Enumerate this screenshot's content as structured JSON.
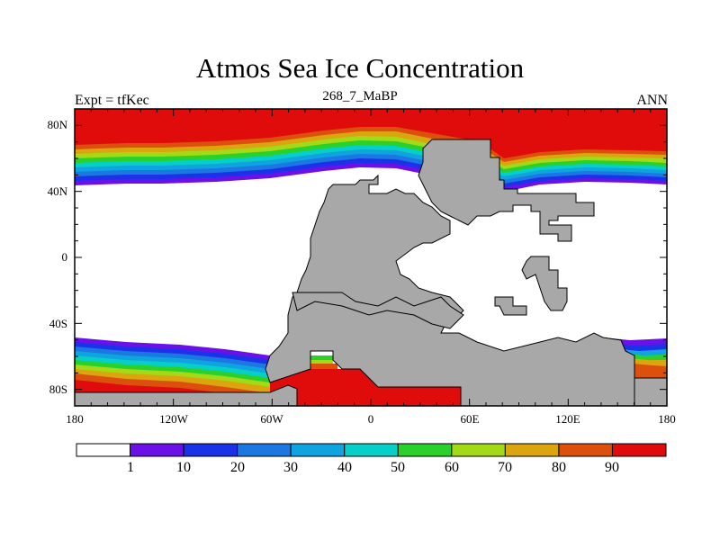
{
  "header": {
    "title": "Atmos Sea Ice Concentration",
    "subtitle": "268_7_MaBP",
    "left_label": "Expt = tfKec",
    "right_label": "ANN"
  },
  "axes": {
    "lon_ticks": [
      "180",
      "120W",
      "60W",
      "0",
      "60E",
      "120E",
      "180"
    ],
    "lat_ticks": [
      "80N",
      "40N",
      "0",
      "40S",
      "80S"
    ]
  },
  "colorbar": {
    "colors": [
      "#ffffff",
      "#6a11e8",
      "#1c32e8",
      "#1b77e2",
      "#0fa3e0",
      "#06cfc8",
      "#2ad12b",
      "#a3d916",
      "#dba50f",
      "#db500d",
      "#e00b0b"
    ],
    "labels": [
      "1",
      "10",
      "20",
      "30",
      "40",
      "50",
      "60",
      "70",
      "80",
      "90"
    ]
  },
  "colors": {
    "land": "#a8a8a8",
    "ice_max": "#e00b0b"
  }
}
